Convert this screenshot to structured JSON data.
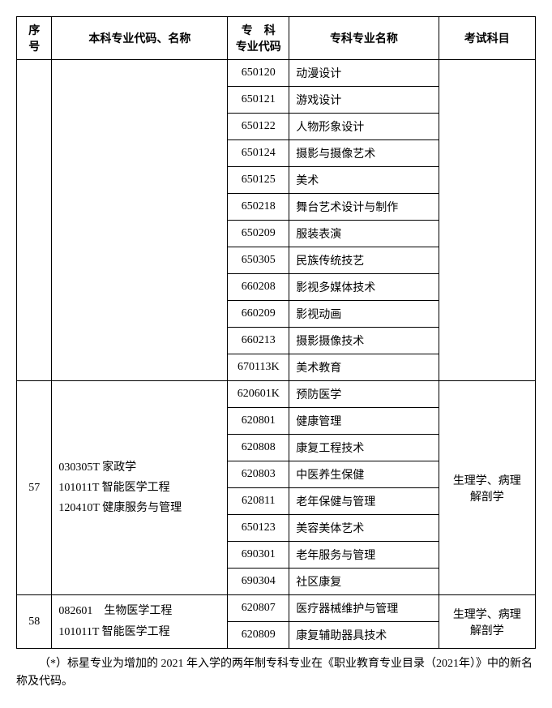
{
  "header": {
    "seq": "序号",
    "bachelor": "本科专业代码、名称",
    "code_line1": "专　科",
    "code_line2": "专业代码",
    "major": "专科专业名称",
    "exam": "考试科目"
  },
  "group0": {
    "rows": [
      {
        "code": "650120",
        "major": "动漫设计"
      },
      {
        "code": "650121",
        "major": "游戏设计"
      },
      {
        "code": "650122",
        "major": "人物形象设计"
      },
      {
        "code": "650124",
        "major": "摄影与摄像艺术"
      },
      {
        "code": "650125",
        "major": "美术"
      },
      {
        "code": "650218",
        "major": "舞台艺术设计与制作"
      },
      {
        "code": "650209",
        "major": "服装表演"
      },
      {
        "code": "650305",
        "major": "民族传统技艺"
      },
      {
        "code": "660208",
        "major": "影视多媒体技术"
      },
      {
        "code": "660209",
        "major": "影视动画"
      },
      {
        "code": "660213",
        "major": "摄影摄像技术"
      },
      {
        "code": "670113K",
        "major": "美术教育"
      }
    ]
  },
  "group1": {
    "seq": "57",
    "bachelor_l1": "030305T 家政学",
    "bachelor_l2": "101011T 智能医学工程",
    "bachelor_l3": "120410T 健康服务与管理",
    "exam_l1": "生理学、病理",
    "exam_l2": "解剖学",
    "rows": [
      {
        "code": "620601K",
        "major": "预防医学"
      },
      {
        "code": "620801",
        "major": "健康管理"
      },
      {
        "code": "620808",
        "major": "康复工程技术"
      },
      {
        "code": "620803",
        "major": "中医养生保健"
      },
      {
        "code": "620811",
        "major": "老年保健与管理"
      },
      {
        "code": "650123",
        "major": "美容美体艺术"
      },
      {
        "code": "690301",
        "major": "老年服务与管理"
      },
      {
        "code": "690304",
        "major": "社区康复"
      }
    ]
  },
  "group2": {
    "seq": "58",
    "bachelor_l1": "082601　生物医学工程",
    "bachelor_l2": "101011T 智能医学工程",
    "exam_l1": "生理学、病理",
    "exam_l2": "解剖学",
    "rows": [
      {
        "code": "620807",
        "major": "医疗器械维护与管理"
      },
      {
        "code": "620809",
        "major": "康复辅助器具技术"
      }
    ]
  },
  "footnote": "（*）标星专业为增加的 2021 年入学的两年制专科专业在《职业教育专业目录（2021年）》中的新名称及代码。"
}
